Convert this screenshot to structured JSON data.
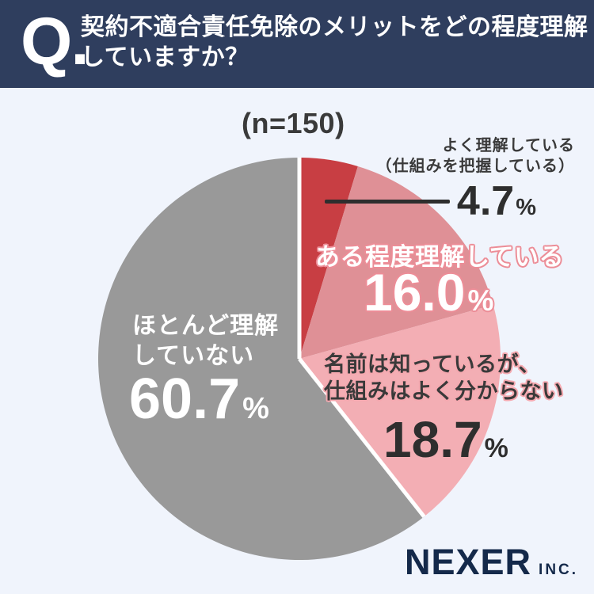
{
  "colors": {
    "page_bg": "#f0f4fc",
    "header_bg": "#2f3e5e",
    "text_dark": "#3a3a3a",
    "outline_coral": "#ec8d97",
    "outline_light_pink": "#f5a9b0",
    "callout_line": "#2e2e2e",
    "brand_navy": "#14294a"
  },
  "header": {
    "q_label": "Q.",
    "question_line1": "契約不適合責任免除のメリットをどの程度理解",
    "question_line2": "していますか？"
  },
  "survey": {
    "sample_size_label": "(n=150)"
  },
  "chart_data": {
    "type": "pie",
    "title": "契約不適合責任免除のメリットをどの程度理解していますか？",
    "sample_size": 150,
    "unit": "%",
    "start_angle_deg": 0,
    "direction": "clockwise",
    "slices": [
      {
        "label": "よく理解している（仕組みを把握している）",
        "value": 4.7,
        "color": "#c83e43"
      },
      {
        "label": "ある程度理解している",
        "value": 16.0,
        "color": "#df9096"
      },
      {
        "label": "名前は知っているが、仕組みはよく分からない",
        "value": 18.7,
        "color": "#f3aeb4"
      },
      {
        "label": "ほとんど理解していない",
        "value": 60.7,
        "color": "#999999"
      }
    ],
    "separator": {
      "color": "#ffffff",
      "width": 5,
      "slice_index": 3
    }
  },
  "callouts": {
    "well_understood": {
      "line1": "よく理解している",
      "line2": "（仕組みを把握している）",
      "value": "4.7",
      "unit": "%"
    },
    "somewhat_understood": {
      "line1": "ある程度理解している",
      "value": "16.0",
      "unit": "%"
    },
    "name_only": {
      "line1": "名前は知っているが、",
      "line2": "仕組みはよく分からない",
      "value": "18.7",
      "unit": "%"
    },
    "not_understood": {
      "line1": "ほとんど理解",
      "line2": "していない",
      "value": "60.7",
      "unit": "%"
    }
  },
  "footer": {
    "brand": "NEXER",
    "brand_suffix": "INC."
  }
}
